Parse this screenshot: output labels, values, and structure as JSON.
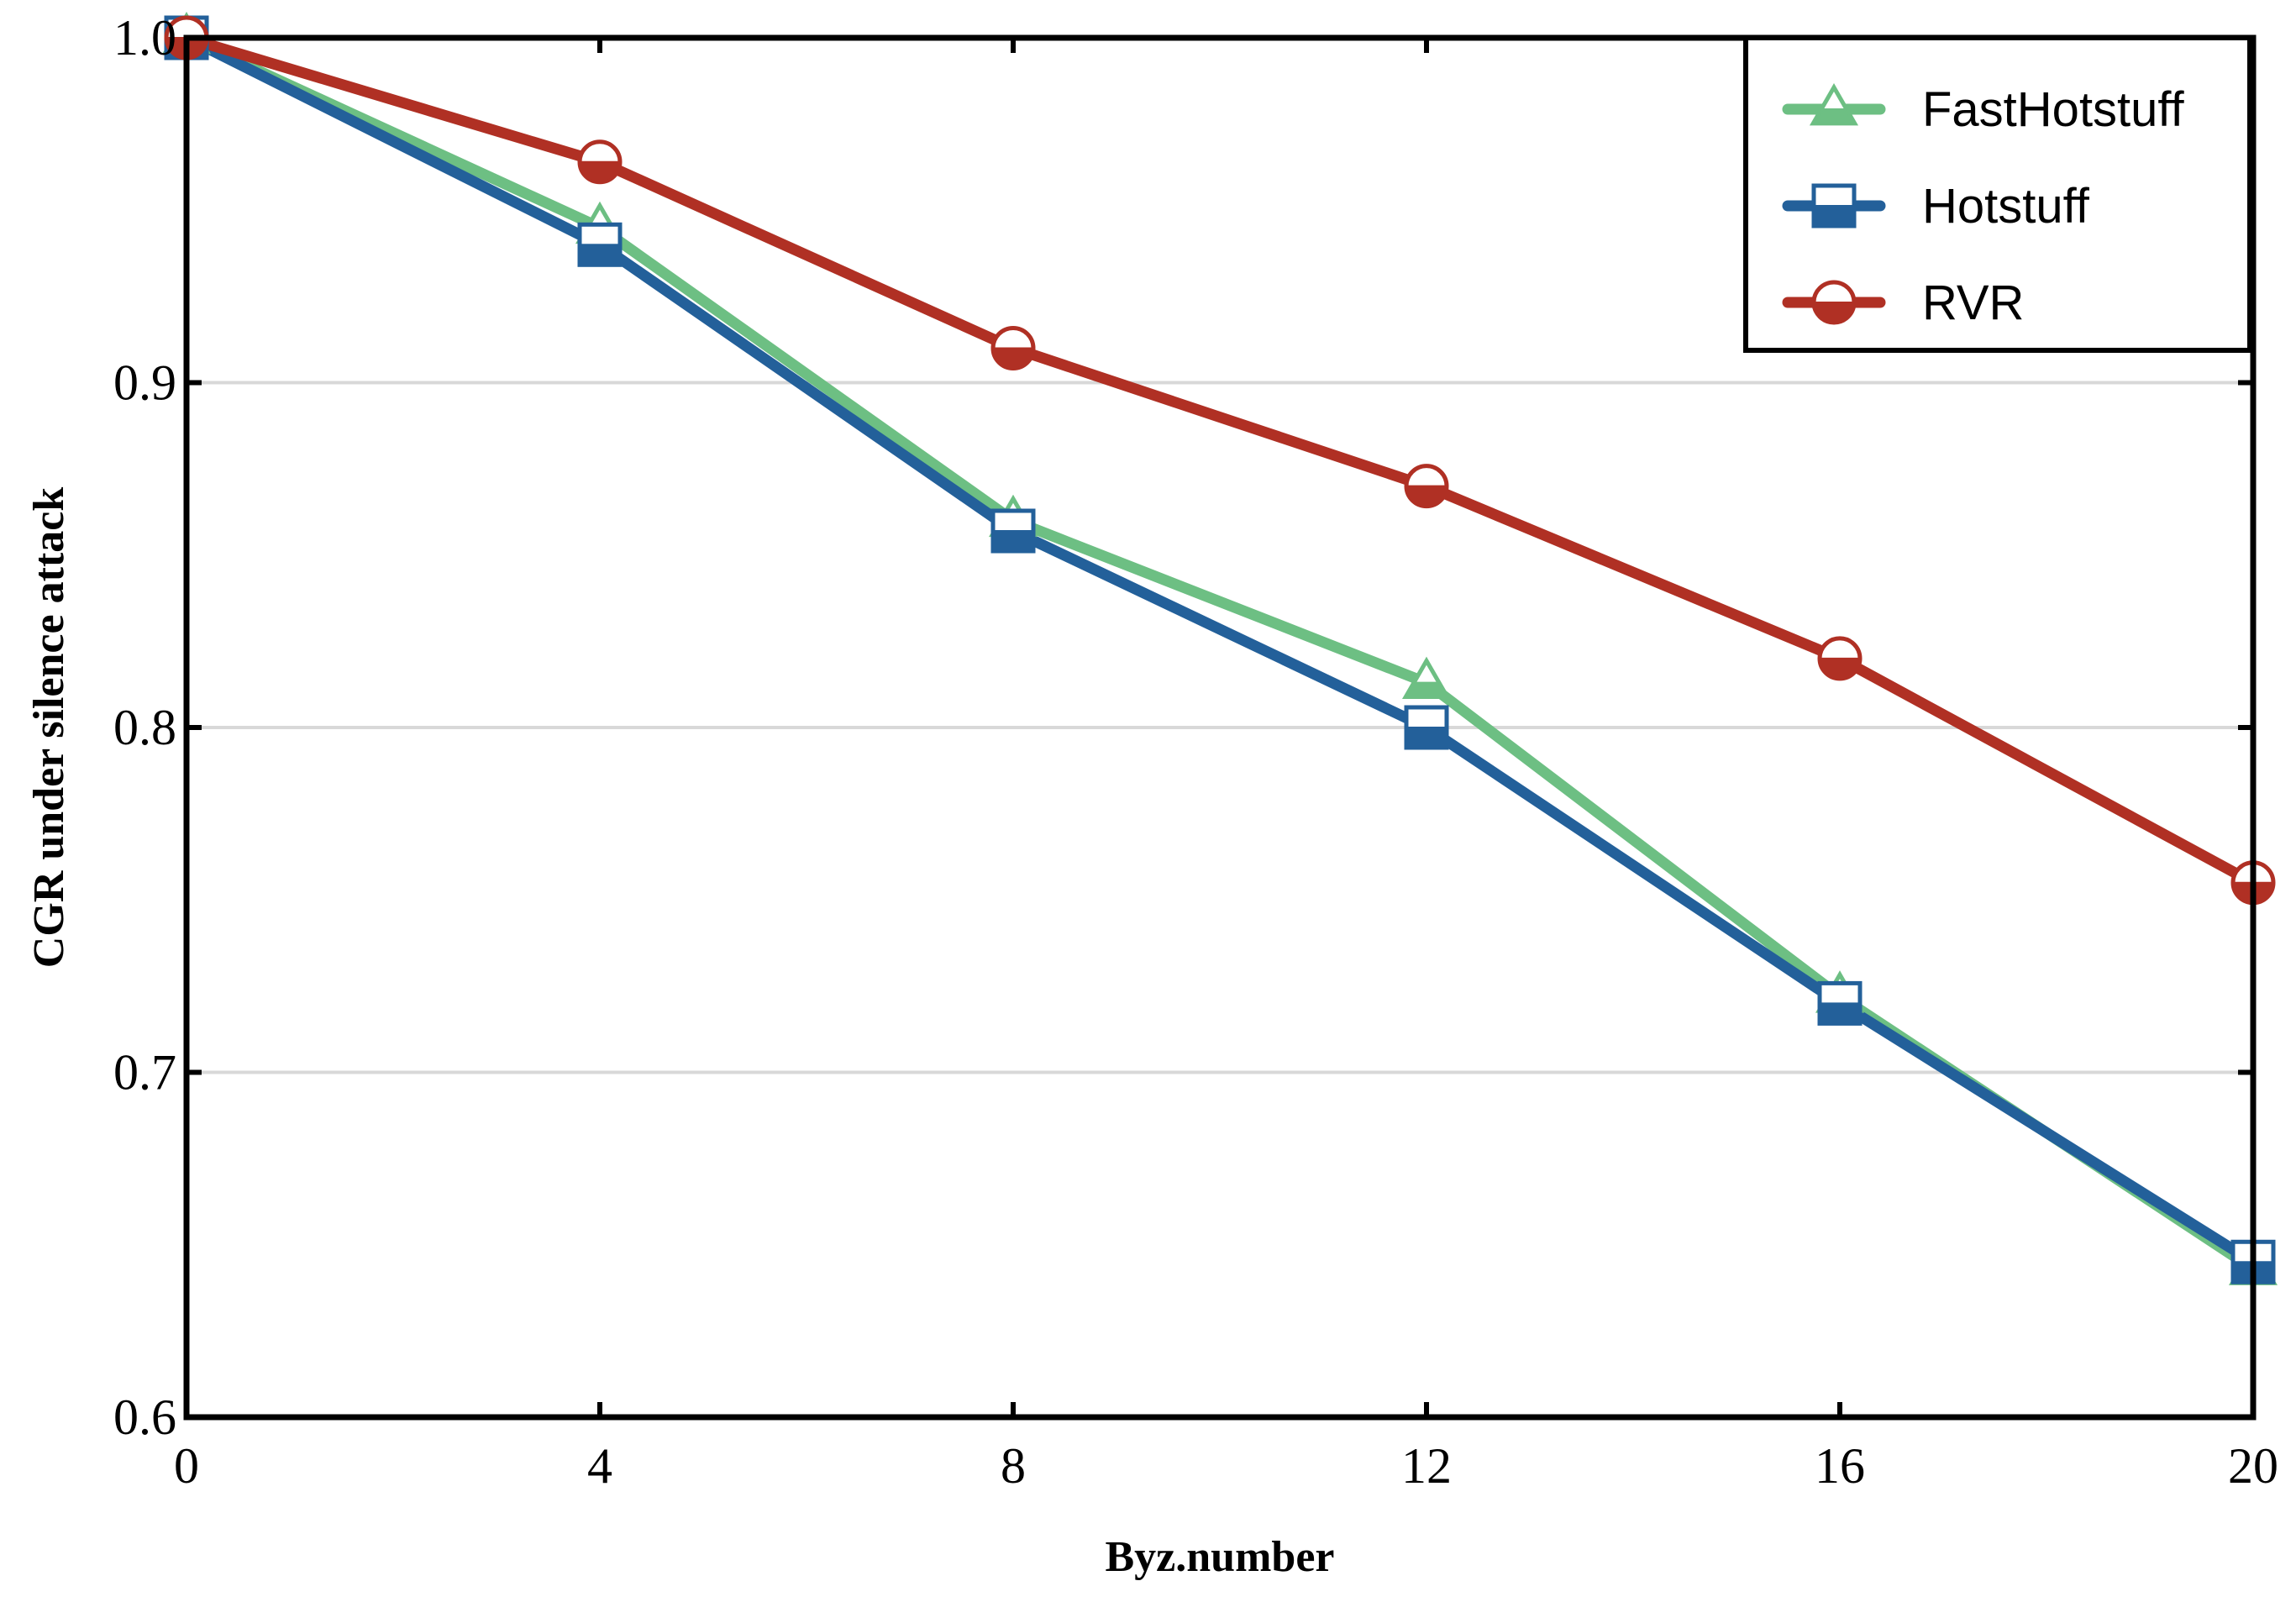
{
  "chart_data": {
    "type": "line",
    "title": "",
    "xlabel": "Byz.number",
    "ylabel": "CGR under silence  attack",
    "x": [
      0,
      4,
      8,
      12,
      16,
      20
    ],
    "xlim": [
      0,
      20
    ],
    "ylim": [
      0.6,
      1.0
    ],
    "xticks": [
      "0",
      "4",
      "8",
      "12",
      "16",
      "20"
    ],
    "yticks": [
      "0.6",
      "0.7",
      "0.8",
      "0.9",
      "1.0"
    ],
    "grid": "horizontal",
    "legend_position": "top-right",
    "series": [
      {
        "name": "FastHotstuff",
        "marker": "triangle",
        "color": "#6dbf83",
        "values": [
          1.0,
          0.945,
          0.86,
          0.813,
          0.722,
          0.643
        ]
      },
      {
        "name": "Hotstuff",
        "marker": "square",
        "color": "#23609a",
        "values": [
          1.0,
          0.94,
          0.857,
          0.8,
          0.72,
          0.645
        ]
      },
      {
        "name": "RVR",
        "marker": "circle",
        "color": "#b03024",
        "values": [
          1.0,
          0.964,
          0.91,
          0.87,
          0.82,
          0.755
        ]
      }
    ]
  }
}
